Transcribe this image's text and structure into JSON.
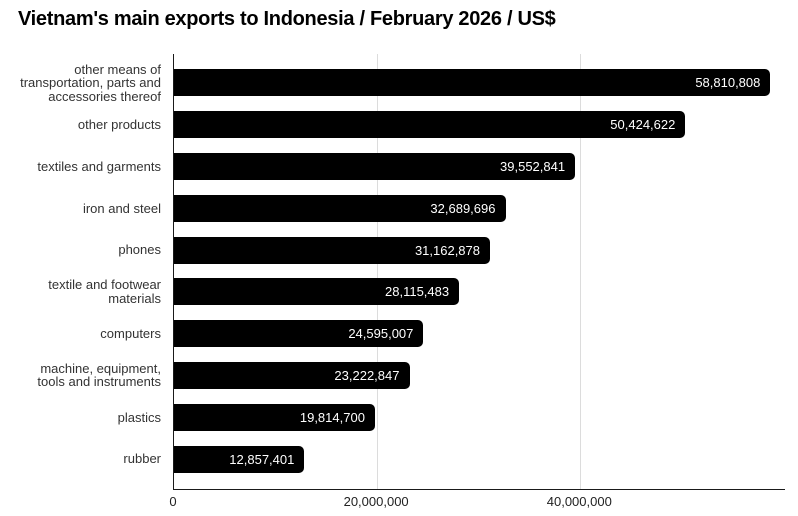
{
  "chart_data": {
    "type": "bar",
    "orientation": "horizontal",
    "title": "Vietnam's main exports to Indonesia / February 2026 / US$",
    "categories": [
      "other means of transportation, parts and accessories thereof",
      "other products",
      "textiles and garments",
      "iron and steel",
      "phones",
      "textile and footwear materials",
      "computers",
      "machine, equipment, tools and instruments",
      "plastics",
      "rubber"
    ],
    "category_label_lines": [
      [
        "other means of",
        "transportation, parts and",
        "accessories thereof"
      ],
      [
        "other products"
      ],
      [
        "textiles and garments"
      ],
      [
        "iron and steel"
      ],
      [
        "phones"
      ],
      [
        "textile and footwear",
        "materials"
      ],
      [
        "computers"
      ],
      [
        "machine, equipment,",
        "tools and instruments"
      ],
      [
        "plastics"
      ],
      [
        "rubber"
      ]
    ],
    "values": [
      58810808,
      50424622,
      39552841,
      32689696,
      31162878,
      28115483,
      24595007,
      23222847,
      19814700,
      12857401
    ],
    "value_labels": [
      "58,810,808",
      "50,424,622",
      "39,552,841",
      "32,689,696",
      "31,162,878",
      "28,115,483",
      "24,595,007",
      "23,222,847",
      "19,814,700",
      "12,857,401"
    ],
    "xlabel": "",
    "ylabel": "",
    "x_ticks": [
      {
        "value": 0,
        "label": "0"
      },
      {
        "value": 20000000,
        "label": "20,000,000"
      },
      {
        "value": 40000000,
        "label": "40,000,000"
      }
    ],
    "xlim": [
      0,
      60250000
    ],
    "grid": true,
    "legend": false,
    "colors": {
      "bar": "#000000",
      "value_label": "#ffffff",
      "category_label": "#333333",
      "tick_label": "#222222",
      "axis": "#1a1a1a",
      "gridline": "#dcdcdc",
      "background": "#ffffff",
      "title": "#000000"
    }
  }
}
